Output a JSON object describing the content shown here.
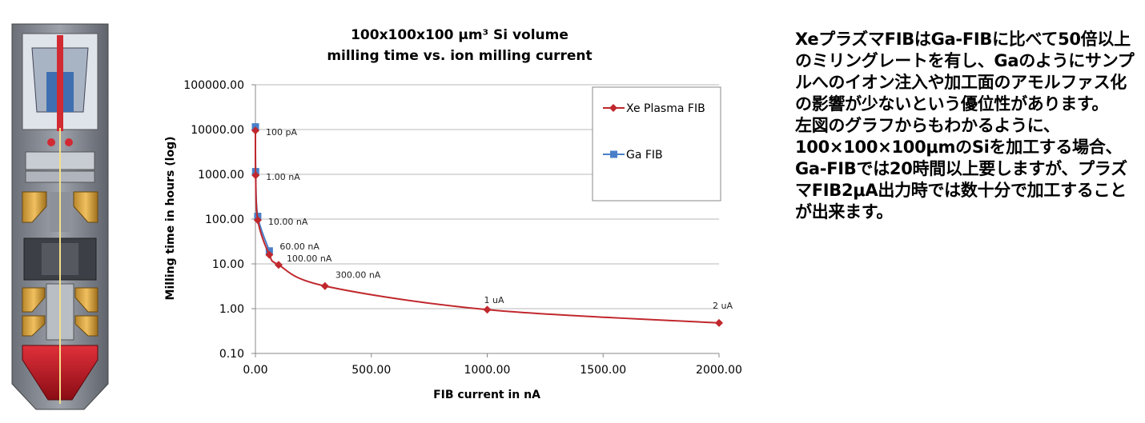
{
  "chart_data": {
    "type": "line",
    "title_lines": [
      "100x100x100 µm³ Si volume",
      "milling time vs. ion milling current"
    ],
    "xlabel": "FIB current in nA",
    "ylabel": "Milling time in hours (log)",
    "xlim": [
      0,
      2000
    ],
    "ylim": [
      0.1,
      100000
    ],
    "y_scale": "log",
    "grid": "horizontal",
    "legend_position": "top-right",
    "x_ticks": [
      "0.00",
      "500.00",
      "1000.00",
      "1500.00",
      "2000.00"
    ],
    "y_ticks": [
      "0.10",
      "1.00",
      "10.00",
      "100.00",
      "1000.00",
      "10000.00",
      "100000.00"
    ],
    "series": [
      {
        "name": "Xe Plasma FIB",
        "color": "#c0282d",
        "marker": "diamond",
        "x": [
          0.1,
          1,
          10,
          60,
          100,
          300,
          1000,
          2000
        ],
        "y": [
          9500,
          950,
          95,
          16,
          9.5,
          3.2,
          0.95,
          0.48
        ]
      },
      {
        "name": "Ga FIB",
        "color": "#4a7fc8",
        "marker": "square",
        "x": [
          0.1,
          1,
          10,
          60
        ],
        "y": [
          11500,
          1150,
          115,
          19.5
        ]
      }
    ],
    "point_labels": [
      {
        "text": "100 pA",
        "x": 0.1,
        "y": 9500
      },
      {
        "text": "1.00 nA",
        "x": 1,
        "y": 950
      },
      {
        "text": "10.00 nA",
        "x": 10,
        "y": 95
      },
      {
        "text": "60.00 nA",
        "x": 60,
        "y": 19.5
      },
      {
        "text": "100.00 nA",
        "x": 100,
        "y": 9.5
      },
      {
        "text": "300.00  nA",
        "x": 300,
        "y": 3.2
      },
      {
        "text": "1 uA",
        "x": 1000,
        "y": 0.95
      },
      {
        "text": "2 uA",
        "x": 2000,
        "y": 0.48
      }
    ]
  },
  "description": {
    "paragraph1": "XeプラズマFIBはGa-FIBに比べて50倍以上のミリングレートを有し、Gaのようにサンプルへのイオン注入や加工面のアモルファス化の影響が少ないという優位性があります。",
    "paragraph2": "左図のグラフからもわかるように、100×100×100μmのSiを加工する場合、Ga-FIBでは20時間以上要しますが、プラズマFIB2μA出力時では数十分で加工することが出来ます。"
  }
}
